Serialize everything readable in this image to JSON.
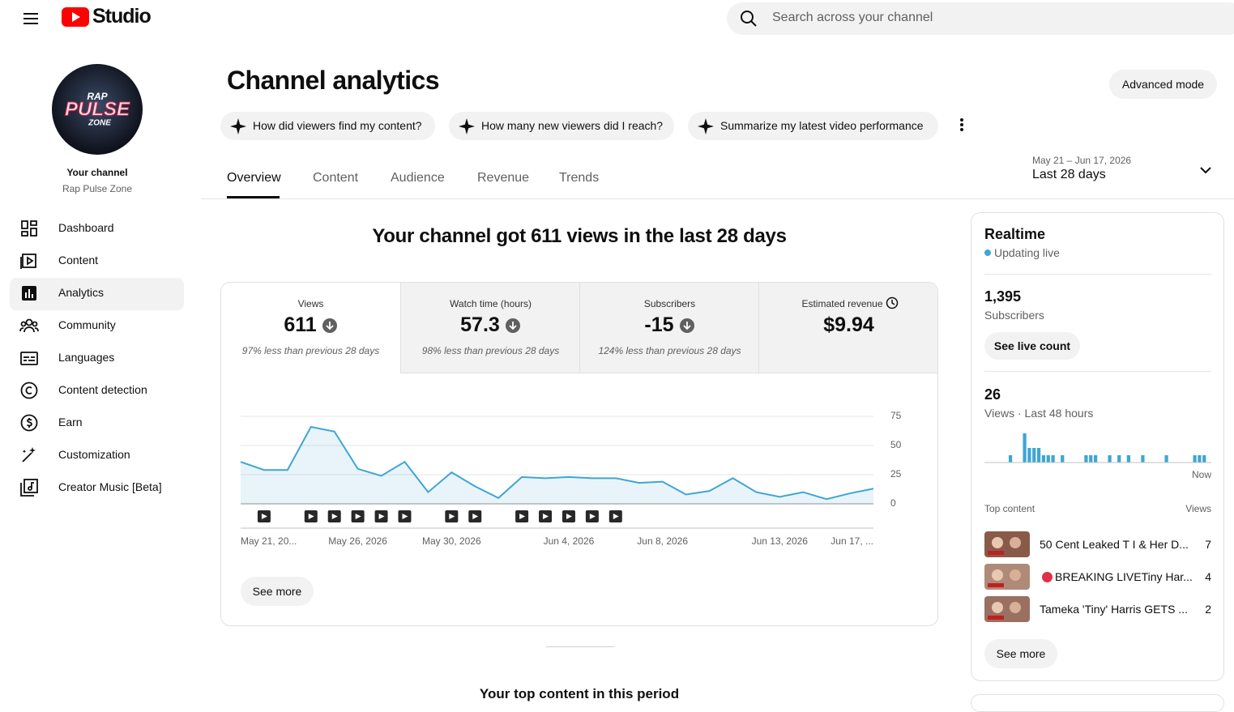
{
  "header": {
    "logo": "Studio",
    "search_placeholder": "Search across your channel"
  },
  "sidebar": {
    "avatar_text": [
      "RAP",
      "PULSE",
      "ZONE"
    ],
    "channel_label": "Your channel",
    "channel_name": "Rap Pulse Zone",
    "nav": [
      "Dashboard",
      "Content",
      "Analytics",
      "Community",
      "Languages",
      "Content detection",
      "Earn",
      "Customization",
      "Creator Music [Beta]"
    ],
    "active_nav": 2
  },
  "page": {
    "title": "Channel analytics",
    "advanced_mode": "Advanced mode",
    "suggestions": [
      "How did viewers find my content?",
      "How many new viewers did I reach?",
      "Summarize my latest video performance"
    ],
    "tabs": [
      "Overview",
      "Content",
      "Audience",
      "Revenue",
      "Trends"
    ],
    "active_tab": 0,
    "date_range": "May 21 – Jun 17, 2026",
    "period": "Last 28 days",
    "headline": "Your channel got 611 views in the last 28 days",
    "metrics": [
      {
        "label": "Views",
        "value": "611",
        "note": "97% less than previous 28 days"
      },
      {
        "label": "Watch time (hours)",
        "value": "57.3",
        "note": "98% less than previous 28 days"
      },
      {
        "label": "Subscribers",
        "value": "-15",
        "note": "124% less than previous 28 days"
      },
      {
        "label": "Estimated revenue",
        "value": "$9.94"
      }
    ],
    "see_more": "See more",
    "top_content_heading": "Your top content in this period"
  },
  "realtime": {
    "title": "Realtime",
    "status": "Updating live",
    "subscribers": "1,395",
    "subscribers_label": "Subscribers",
    "live_count_button": "See live count",
    "views": "26",
    "views_label": "Views · Last 48 hours",
    "top_content_label": "Top content",
    "views_column": "Views",
    "top_content": [
      {
        "title": "50 Cent Leaked T I & Her D...",
        "views": "7"
      },
      {
        "title": "BREAKING LIVETiny Har...",
        "views": "4"
      },
      {
        "title": "Tameka 'Tiny' Harris GETS ...",
        "views": "2"
      }
    ],
    "see_more": "See more"
  },
  "chart_data": [
    {
      "type": "line",
      "categories": [
        "May 21, 20...",
        null,
        null,
        null,
        null,
        "May 26, 2026",
        null,
        null,
        null,
        "May 30, 2026",
        null,
        null,
        null,
        null,
        "Jun 4, 2026",
        null,
        null,
        null,
        "Jun 8, 2026",
        null,
        null,
        null,
        null,
        "Jun 13, 2026",
        null,
        null,
        null,
        "Jun 17, ..."
      ],
      "values": [
        36,
        29,
        29,
        66,
        62,
        30,
        24,
        36,
        10,
        27,
        15,
        5,
        23,
        22,
        23,
        22,
        22,
        18,
        19,
        8,
        11,
        22,
        10,
        6,
        10,
        4,
        9,
        13
      ],
      "color": "#3ea6d4",
      "uploads": [
        1,
        3,
        4,
        5,
        6,
        7,
        9,
        10,
        12,
        13,
        14,
        15,
        16
      ],
      "ylim": [
        0,
        75
      ],
      "yticks": [
        0,
        25,
        50,
        75
      ],
      "grid": true
    },
    {
      "type": "bar",
      "values": [
        0,
        0,
        0,
        0,
        0,
        1,
        0,
        0,
        4,
        2,
        2,
        2,
        1,
        1,
        1,
        0,
        1,
        0,
        0,
        0,
        0,
        1,
        1,
        1,
        0,
        0,
        1,
        0,
        1,
        0,
        1,
        0,
        0,
        1,
        0,
        0,
        0,
        0,
        1,
        0,
        0,
        0,
        0,
        0,
        1,
        1,
        1,
        0
      ],
      "color": "#3ea6d4",
      "end_label": "Now"
    }
  ]
}
